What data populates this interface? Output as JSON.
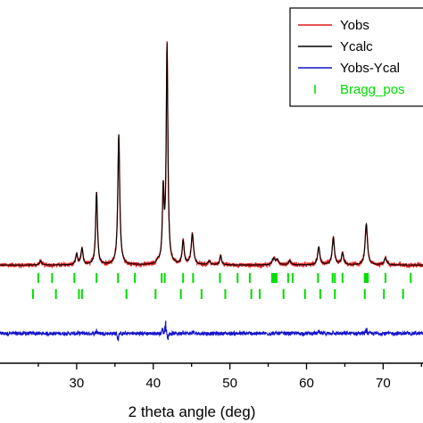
{
  "chart_data": {
    "type": "line",
    "xlabel": "2 theta angle (deg)",
    "xlim": [
      20,
      75.2
    ],
    "ylim": [
      0,
      1
    ],
    "x_ticks": [
      30,
      40,
      50,
      60,
      70
    ],
    "x_tick_labels": [
      "30",
      "40",
      "50",
      "60",
      "70"
    ],
    "colors": {
      "yobs": "#dd1c1c",
      "ycalc": "#000000",
      "diff": "#1414cc",
      "bragg": "#00dd00"
    },
    "legend": {
      "placement": "top-right",
      "entries": [
        {
          "label": "Yobs",
          "color": "#dd1c1c",
          "marker": "line"
        },
        {
          "label": "Ycalc",
          "color": "#000000",
          "marker": "line"
        },
        {
          "label": "Yobs-Ycal",
          "color": "#1414cc",
          "marker": "line"
        },
        {
          "label": "Bragg_pos",
          "color": "#00dd00",
          "marker": "tick"
        }
      ]
    },
    "baseline": 0.27,
    "peaks": [
      {
        "x": 25.3,
        "height": 0.012,
        "width": 0.15
      },
      {
        "x": 30.0,
        "height": 0.03,
        "width": 0.15
      },
      {
        "x": 30.7,
        "height": 0.045,
        "width": 0.15
      },
      {
        "x": 32.6,
        "height": 0.2,
        "width": 0.14
      },
      {
        "x": 35.5,
        "height": 0.36,
        "width": 0.15
      },
      {
        "x": 40.6,
        "height": 0.008,
        "width": 0.15
      },
      {
        "x": 41.3,
        "height": 0.195,
        "width": 0.13
      },
      {
        "x": 41.8,
        "height": 0.6,
        "width": 0.13
      },
      {
        "x": 43.9,
        "height": 0.065,
        "width": 0.15
      },
      {
        "x": 45.1,
        "height": 0.085,
        "width": 0.18
      },
      {
        "x": 47.3,
        "height": 0.01,
        "width": 0.2
      },
      {
        "x": 48.8,
        "height": 0.025,
        "width": 0.15
      },
      {
        "x": 55.7,
        "height": 0.018,
        "width": 0.2
      },
      {
        "x": 56.2,
        "height": 0.015,
        "width": 0.2
      },
      {
        "x": 57.8,
        "height": 0.012,
        "width": 0.2
      },
      {
        "x": 61.6,
        "height": 0.05,
        "width": 0.17
      },
      {
        "x": 63.5,
        "height": 0.075,
        "width": 0.17
      },
      {
        "x": 64.7,
        "height": 0.032,
        "width": 0.17
      },
      {
        "x": 67.8,
        "height": 0.113,
        "width": 0.18
      },
      {
        "x": 70.3,
        "height": 0.02,
        "width": 0.2
      }
    ],
    "bragg_positions_row1": [
      25.0,
      26.8,
      29.7,
      32.6,
      35.4,
      37.6,
      41.1,
      41.5,
      43.9,
      45.2,
      48.7,
      51.0,
      52.6,
      55.5,
      55.7,
      55.9,
      56.1,
      57.6,
      58.2,
      61.5,
      63.4,
      63.7,
      64.7,
      67.6,
      67.8,
      68.0,
      70.3,
      73.6
    ],
    "bragg_positions_row2": [
      24.3,
      27.3,
      30.3,
      30.7,
      36.5,
      40.3,
      43.6,
      46.3,
      49.4,
      52.8,
      53.9,
      57.0,
      59.8,
      61.8,
      63.7,
      67.6,
      70.1,
      72.6
    ],
    "diff_line_level": 0.082,
    "diff_spikes": [
      {
        "x": 32.6,
        "amp": 0.012
      },
      {
        "x": 35.4,
        "amp": -0.025
      },
      {
        "x": 41.2,
        "amp": 0.018
      },
      {
        "x": 41.6,
        "amp": 0.042
      },
      {
        "x": 41.9,
        "amp": -0.02
      },
      {
        "x": 43.9,
        "amp": 0.008
      },
      {
        "x": 45.2,
        "amp": 0.009
      },
      {
        "x": 61.6,
        "amp": 0.006
      },
      {
        "x": 63.5,
        "amp": 0.008
      },
      {
        "x": 67.8,
        "amp": 0.018
      }
    ]
  }
}
